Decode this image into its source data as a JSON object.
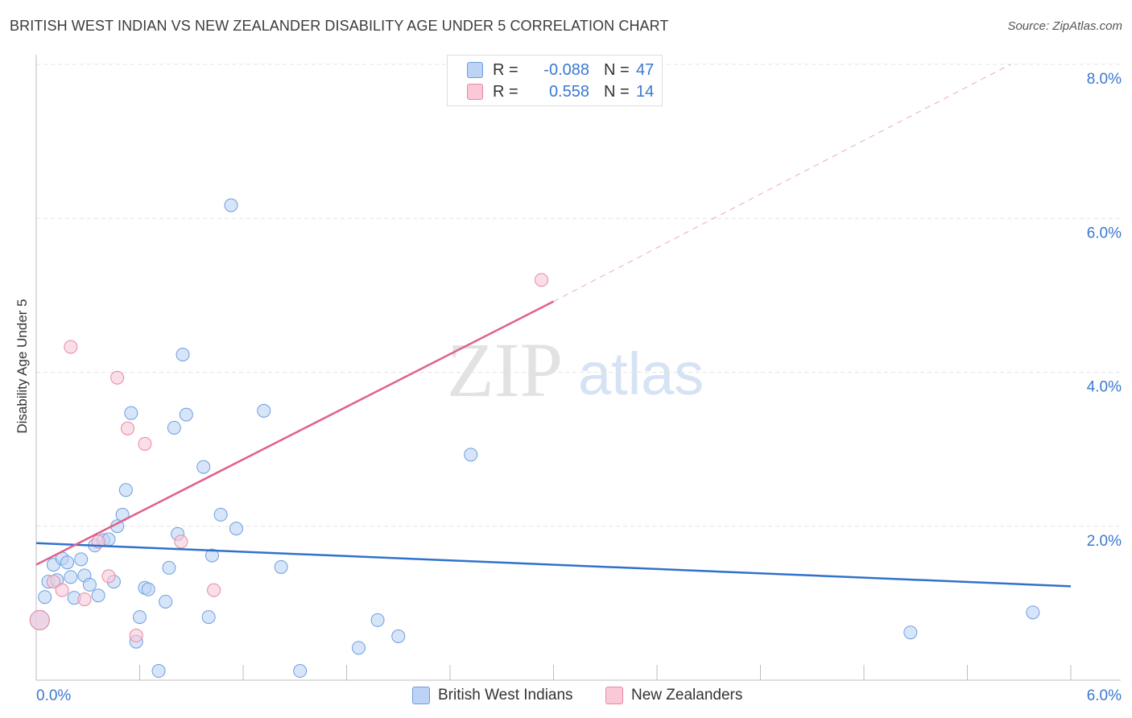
{
  "title": "BRITISH WEST INDIAN VS NEW ZEALANDER DISABILITY AGE UNDER 5 CORRELATION CHART",
  "source": "Source: ZipAtlas.com",
  "watermark": {
    "zip": "ZIP",
    "atlas": "atlas"
  },
  "legend": {
    "rows": [
      {
        "r_label": "R =",
        "r_value": "-0.088",
        "n_label": "N =",
        "n_value": "47"
      },
      {
        "r_label": "R =",
        "r_value": "0.558",
        "n_label": "N =",
        "n_value": "14"
      }
    ]
  },
  "chart_data": {
    "type": "scatter",
    "title": "BRITISH WEST INDIAN VS NEW ZEALANDER DISABILITY AGE UNDER 5 CORRELATION CHART",
    "xlabel": "",
    "ylabel": "Disability Age Under 5",
    "xlim": [
      0,
      6.0
    ],
    "ylim": [
      0,
      8.0
    ],
    "x_tick_labels": [
      "0.0%",
      "6.0%"
    ],
    "y_ticks": [
      2.0,
      4.0,
      6.0,
      8.0
    ],
    "y_tick_labels": [
      "2.0%",
      "4.0%",
      "6.0%",
      "8.0%"
    ],
    "grid": true,
    "colors": {
      "blue_fill": "#bcd3f5",
      "blue_stroke": "#6d9ee0",
      "blue_line": "#2f72cc",
      "pink_fill": "#f9c9d8",
      "pink_stroke": "#e9889f",
      "pink_line": "#e0608b",
      "tick_label": "#3a78d0"
    },
    "series": [
      {
        "name": "British West Indians",
        "color": "blue",
        "r": -0.088,
        "n": 47,
        "points": [
          [
            0.02,
            0.78
          ],
          [
            0.05,
            1.08
          ],
          [
            0.07,
            1.28
          ],
          [
            0.1,
            1.5
          ],
          [
            0.12,
            1.3
          ],
          [
            0.15,
            1.58
          ],
          [
            0.18,
            1.53
          ],
          [
            0.2,
            1.34
          ],
          [
            0.22,
            1.07
          ],
          [
            0.26,
            1.57
          ],
          [
            0.28,
            1.36
          ],
          [
            0.31,
            1.24
          ],
          [
            0.34,
            1.75
          ],
          [
            0.36,
            1.1
          ],
          [
            0.39,
            1.82
          ],
          [
            0.42,
            1.83
          ],
          [
            0.45,
            1.28
          ],
          [
            0.47,
            2.0
          ],
          [
            0.5,
            2.15
          ],
          [
            0.52,
            2.47
          ],
          [
            0.55,
            3.47
          ],
          [
            0.58,
            0.5
          ],
          [
            0.6,
            0.82
          ],
          [
            0.63,
            1.2
          ],
          [
            0.65,
            1.18
          ],
          [
            0.71,
            0.12
          ],
          [
            0.75,
            1.02
          ],
          [
            0.77,
            1.46
          ],
          [
            0.8,
            3.28
          ],
          [
            0.82,
            1.9
          ],
          [
            0.85,
            4.23
          ],
          [
            0.87,
            3.45
          ],
          [
            0.97,
            2.77
          ],
          [
            1.0,
            0.82
          ],
          [
            1.02,
            1.62
          ],
          [
            1.07,
            2.15
          ],
          [
            1.13,
            6.17
          ],
          [
            1.16,
            1.97
          ],
          [
            1.32,
            3.5
          ],
          [
            1.42,
            1.47
          ],
          [
            1.53,
            0.12
          ],
          [
            1.87,
            0.42
          ],
          [
            1.98,
            0.78
          ],
          [
            2.1,
            0.57
          ],
          [
            2.52,
            2.93
          ],
          [
            5.07,
            0.62
          ],
          [
            5.78,
            0.88
          ]
        ]
      },
      {
        "name": "New Zealanders",
        "color": "pink",
        "r": 0.558,
        "n": 14,
        "points": [
          [
            0.02,
            0.78
          ],
          [
            0.1,
            1.28
          ],
          [
            0.15,
            1.17
          ],
          [
            0.2,
            4.33
          ],
          [
            0.28,
            1.05
          ],
          [
            0.36,
            1.8
          ],
          [
            0.42,
            1.35
          ],
          [
            0.47,
            3.93
          ],
          [
            0.53,
            3.27
          ],
          [
            0.58,
            0.58
          ],
          [
            0.63,
            3.07
          ],
          [
            0.84,
            1.8
          ],
          [
            1.03,
            1.17
          ],
          [
            2.93,
            5.2
          ]
        ]
      }
    ],
    "trend_lines": [
      {
        "series": "British West Indians",
        "x_start": 0.0,
        "y_start": 1.78,
        "x_end": 6.0,
        "y_end": 1.22,
        "dashed_to": null
      },
      {
        "series": "New Zealanders",
        "x_start": 0.0,
        "y_start": 1.5,
        "x_end": 3.0,
        "y_end": 4.92,
        "dashed_to": [
          5.65,
          8.0
        ]
      }
    ]
  },
  "bottom_legend": [
    {
      "label": "British West Indians",
      "color": "blue"
    },
    {
      "label": "New Zealanders",
      "color": "pink"
    }
  ]
}
